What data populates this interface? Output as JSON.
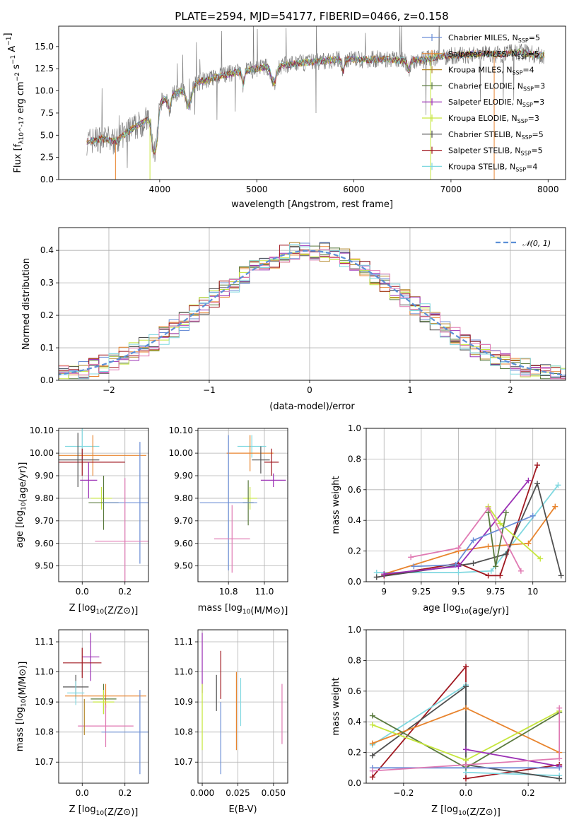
{
  "figure": {
    "title": "PLATE=2594, MJD=54177, FIBERID=0466, z=0.158"
  },
  "colors": {
    "data_gray": "#808080",
    "gauss": "#5b8fd6",
    "Chabrier MILES": "#6b8ed6",
    "Salpeter MILES": "#e8842e",
    "Kroupa MILES": "#b3872a",
    "Chabrier ELODIE": "#5a7a3e",
    "Salpeter ELODIE": "#9b30b5",
    "Kroupa ELODIE": "#c6e63d",
    "Chabrier STELIB": "#505050",
    "Salpeter STELIB": "#a01820",
    "Kroupa STELIB": "#80d8e0",
    "pink": "#e07ab3"
  },
  "chart_data": [
    {
      "id": "spectrum",
      "type": "line",
      "title": "PLATE=2594, MJD=54177, FIBERID=0466, z=0.158",
      "xlabel": "wavelength [Angstrom, rest frame]",
      "ylabel": "Flux [f_λ10^-17 erg cm^-2 s^-1 A^-1]",
      "xlim": [
        2960,
        8180
      ],
      "ylim": [
        0,
        17.3
      ],
      "xticks": [
        4000,
        5000,
        6000,
        7000,
        8000
      ],
      "yticks": [
        0.0,
        2.5,
        5.0,
        7.5,
        10.0,
        12.5,
        15.0
      ],
      "legend_position": "right",
      "continuum": {
        "x": [
          3250,
          3400,
          3550,
          3700,
          3850,
          3950,
          4000,
          4100,
          4200,
          4300,
          4400,
          4500,
          4700,
          4900,
          5100,
          5300,
          5500,
          5700,
          5900,
          6100,
          6300,
          6500,
          6700,
          6900,
          7100,
          7300,
          7500,
          7700,
          7900
        ],
        "y": [
          4.3,
          4.6,
          4.3,
          5.6,
          6.6,
          7.2,
          8.7,
          9.4,
          9.9,
          10.3,
          11.0,
          11.3,
          11.9,
          12.3,
          12.7,
          12.9,
          13.2,
          13.4,
          13.6,
          13.5,
          13.6,
          13.4,
          13.5,
          13.9,
          14.0,
          14.2,
          14.1,
          14.4,
          14.0
        ]
      },
      "series": [
        {
          "name": "Chabrier MILES, N_SSP=5",
          "label": "Chabrier MILES, N",
          "n": "5"
        },
        {
          "name": "Salpeter MILES, N_SSP=5",
          "label": "Salpeter MILES, N",
          "n": "5"
        },
        {
          "name": "Kroupa MILES, N_SSP=4",
          "label": "Kroupa MILES, N",
          "n": "4"
        },
        {
          "name": "Chabrier ELODIE, N_SSP=3",
          "label": "Chabrier ELODIE, N",
          "n": "3"
        },
        {
          "name": "Salpeter ELODIE, N_SSP=3",
          "label": "Salpeter ELODIE, N",
          "n": "3"
        },
        {
          "name": "Kroupa ELODIE, N_SSP=3",
          "label": "Kroupa ELODIE, N",
          "n": "3"
        },
        {
          "name": "Chabrier STELIB, N_SSP=5",
          "label": "Chabrier STELIB, N",
          "n": "5"
        },
        {
          "name": "Salpeter STELIB, N_SSP=5",
          "label": "Salpeter STELIB, N",
          "n": "5"
        },
        {
          "name": "Kroupa STELIB, N_SSP=4",
          "label": "Kroupa STELIB, N",
          "n": "4"
        }
      ]
    },
    {
      "id": "residuals",
      "type": "histogram",
      "xlabel": "(data-model)/error",
      "ylabel": "Normed distribution",
      "xlim": [
        -2.5,
        2.55
      ],
      "ylim": [
        0,
        0.47
      ],
      "xticks": [
        -2,
        -1,
        0,
        1,
        2
      ],
      "yticks": [
        0.0,
        0.1,
        0.2,
        0.3,
        0.4
      ],
      "grid": true,
      "gauss_label": "𝒩(0, 1)",
      "bin_width": 0.1
    },
    {
      "id": "age-vs-Z",
      "type": "errorbar",
      "xlabel": "Z [log10(Z/Z⊙)]",
      "ylabel": "age [log10(age/yr)]",
      "xlim": [
        -0.11,
        0.31
      ],
      "ylim": [
        9.43,
        10.11
      ],
      "xticks": [
        0.0,
        0.2
      ],
      "xticklabels": [
        "0.0",
        "0.2"
      ],
      "yticks": [
        9.5,
        9.6,
        9.7,
        9.8,
        9.9,
        10.0,
        10.1
      ],
      "points": [
        {
          "series": "Kroupa STELIB",
          "x": 0.0,
          "xerr": 0.08,
          "y": 10.03,
          "yerr": 0.08
        },
        {
          "series": "Salpeter MILES",
          "x": 0.05,
          "xerr": 0.25,
          "y": 9.99,
          "yerr": 0.09
        },
        {
          "series": "Salpeter STELIB",
          "x": 0.0,
          "xerr": 0.2,
          "y": 9.96,
          "yerr": 0.06
        },
        {
          "series": "Chabrier STELIB",
          "x": -0.02,
          "xerr": 0.1,
          "y": 9.97,
          "yerr": 0.12
        },
        {
          "series": "Salpeter ELODIE",
          "x": 0.03,
          "xerr": 0.04,
          "y": 9.88,
          "yerr": 0.08
        },
        {
          "series": "Kroupa ELODIE",
          "x": 0.09,
          "xerr": 0.05,
          "y": 9.8,
          "yerr": 0.05
        },
        {
          "series": "Chabrier ELODIE",
          "x": 0.1,
          "xerr": 0.07,
          "y": 9.78,
          "yerr": 0.12
        },
        {
          "series": "Chabrier MILES",
          "x": 0.27,
          "xerr": 0.17,
          "y": 9.78,
          "yerr": 0.27
        },
        {
          "series": "pink",
          "x": 0.2,
          "xerr": 0.14,
          "y": 9.61,
          "yerr": 0.28
        }
      ]
    },
    {
      "id": "age-vs-mass",
      "type": "errorbar",
      "xlabel": "mass [log10(M/M⊙)]",
      "xlim": [
        10.63,
        11.13
      ],
      "ylim": [
        9.43,
        10.11
      ],
      "xticks": [
        10.8,
        11.0
      ],
      "xticklabels": [
        "10.8",
        "11.0"
      ],
      "yticks": [
        9.5,
        9.6,
        9.7,
        9.8,
        9.9,
        10.0,
        10.1
      ],
      "points": [
        {
          "series": "Kroupa STELIB",
          "x": 10.93,
          "xerr": 0.08,
          "y": 10.03,
          "yerr": 0.05
        },
        {
          "series": "Salpeter MILES",
          "x": 10.92,
          "xerr": 0.13,
          "y": 10.0,
          "yerr": 0.08
        },
        {
          "series": "Salpeter STELIB",
          "x": 11.04,
          "xerr": 0.04,
          "y": 9.96,
          "yerr": 0.06
        },
        {
          "series": "Chabrier STELIB",
          "x": 10.98,
          "xerr": 0.05,
          "y": 9.97,
          "yerr": 0.06
        },
        {
          "series": "Salpeter ELODIE",
          "x": 11.05,
          "xerr": 0.07,
          "y": 9.88,
          "yerr": 0.03
        },
        {
          "series": "Kroupa ELODIE",
          "x": 10.92,
          "xerr": 0.04,
          "y": 9.8,
          "yerr": 0.05
        },
        {
          "series": "Chabrier ELODIE",
          "x": 10.91,
          "xerr": 0.03,
          "y": 9.78,
          "yerr": 0.1
        },
        {
          "series": "Chabrier MILES",
          "x": 10.8,
          "xerr": 0.16,
          "y": 9.78,
          "yerr": 0.3
        },
        {
          "series": "pink",
          "x": 10.82,
          "xerr": 0.1,
          "y": 9.62,
          "yerr": 0.15
        }
      ]
    },
    {
      "id": "weight-vs-age",
      "type": "line",
      "xlabel": "age [log10(age/yr)]",
      "ylabel": "mass weight",
      "xlim": [
        8.88,
        10.22
      ],
      "ylim": [
        0,
        1
      ],
      "xticks": [
        9.0,
        9.25,
        9.5,
        9.75,
        10.0
      ],
      "yticks": [
        0.0,
        0.2,
        0.4,
        0.6,
        0.8,
        1.0
      ],
      "grid": true,
      "lines": [
        {
          "series": "Kroupa STELIB",
          "x": [
            8.95,
            9.5,
            9.72,
            10.17
          ],
          "y": [
            0.06,
            0.06,
            0.07,
            0.63
          ]
        },
        {
          "series": "Salpeter MILES",
          "x": [
            9.0,
            9.5,
            9.7,
            9.97,
            10.15
          ],
          "y": [
            0.05,
            0.2,
            0.23,
            0.25,
            0.49
          ]
        },
        {
          "series": "Salpeter STELIB",
          "x": [
            9.0,
            9.5,
            9.7,
            9.78,
            10.03
          ],
          "y": [
            0.04,
            0.12,
            0.04,
            0.04,
            0.76
          ]
        },
        {
          "series": "Chabrier STELIB",
          "x": [
            8.95,
            9.6,
            9.82,
            10.03,
            10.19
          ],
          "y": [
            0.03,
            0.12,
            0.18,
            0.64,
            0.04
          ]
        },
        {
          "series": "Salpeter ELODIE",
          "x": [
            9.0,
            9.5,
            9.97
          ],
          "y": [
            0.05,
            0.1,
            0.66
          ]
        },
        {
          "series": "Kroupa ELODIE",
          "x": [
            9.7,
            9.78,
            10.05
          ],
          "y": [
            0.49,
            0.38,
            0.15
          ]
        },
        {
          "series": "Chabrier ELODIE",
          "x": [
            9.7,
            9.75,
            9.82
          ],
          "y": [
            0.45,
            0.1,
            0.45
          ]
        },
        {
          "series": "Chabrier MILES",
          "x": [
            9.2,
            9.48,
            9.6,
            10.0
          ],
          "y": [
            0.1,
            0.11,
            0.27,
            0.43
          ]
        },
        {
          "series": "pink",
          "x": [
            9.18,
            9.5,
            9.7,
            9.92
          ],
          "y": [
            0.16,
            0.22,
            0.48,
            0.07
          ]
        }
      ]
    },
    {
      "id": "mass-vs-Z",
      "type": "errorbar",
      "xlabel": "Z [log10(Z/Z⊙)]",
      "ylabel": "mass [log10(M/M⊙)]",
      "xlim": [
        -0.11,
        0.31
      ],
      "ylim": [
        10.63,
        11.14
      ],
      "xticks": [
        0.0,
        0.2
      ],
      "xticklabels": [
        "0.0",
        "0.2"
      ],
      "yticks": [
        10.7,
        10.8,
        10.9,
        11.0,
        11.1
      ],
      "points": [
        {
          "series": "Salpeter ELODIE",
          "x": 0.04,
          "xerr": 0.04,
          "y": 11.05,
          "yerr": 0.08
        },
        {
          "series": "Salpeter STELIB",
          "x": 0.0,
          "xerr": 0.09,
          "y": 11.03,
          "yerr": 0.05
        },
        {
          "series": "Chabrier STELIB",
          "x": -0.03,
          "xerr": 0.06,
          "y": 10.95,
          "yerr": 0.04
        },
        {
          "series": "Kroupa STELIB",
          "x": -0.03,
          "xerr": 0.04,
          "y": 10.93,
          "yerr": 0.04
        },
        {
          "series": "Salpeter MILES",
          "x": 0.11,
          "xerr": 0.19,
          "y": 10.92,
          "yerr": 0.04
        },
        {
          "series": "Chabrier ELODIE",
          "x": 0.1,
          "xerr": 0.06,
          "y": 10.91,
          "yerr": 0.05
        },
        {
          "series": "Kroupa ELODIE",
          "x": 0.1,
          "xerr": 0.05,
          "y": 10.9,
          "yerr": 0.04
        },
        {
          "series": "pink",
          "x": 0.11,
          "xerr": 0.13,
          "y": 10.82,
          "yerr": 0.07
        },
        {
          "series": "Chabrier MILES",
          "x": 0.27,
          "xerr": 0.18,
          "y": 10.8,
          "yerr": 0.14
        },
        {
          "series": "Kroupa MILES",
          "x": 0.01,
          "xerr": 0.0,
          "y": 10.85,
          "yerr": 0.06
        }
      ]
    },
    {
      "id": "mass-vs-EBV",
      "type": "errorbar",
      "xlabel": "E(B-V)",
      "xlim": [
        -0.003,
        0.06
      ],
      "ylim": [
        10.63,
        11.14
      ],
      "xticks": [
        0.0,
        0.025,
        0.05
      ],
      "xticklabels": [
        "0.000",
        "0.025",
        "0.050"
      ],
      "yticks": [
        10.7,
        10.8,
        10.9,
        11.0,
        11.1
      ],
      "points": [
        {
          "series": "Salpeter ELODIE",
          "x": 0.0,
          "y": 11.03,
          "yerr": 0.1
        },
        {
          "series": "Kroupa ELODIE",
          "x": 0.0,
          "y": 10.85,
          "yerr": 0.11
        },
        {
          "series": "Chabrier STELIB",
          "x": 0.01,
          "y": 10.93,
          "yerr": 0.06
        },
        {
          "series": "Chabrier MILES",
          "x": 0.013,
          "y": 10.78,
          "yerr": 0.12
        },
        {
          "series": "Salpeter STELIB",
          "x": 0.013,
          "y": 10.99,
          "yerr": 0.08
        },
        {
          "series": "Salpeter MILES",
          "x": 0.024,
          "y": 10.87,
          "yerr": 0.13
        },
        {
          "series": "Kroupa STELIB",
          "x": 0.027,
          "y": 10.9,
          "yerr": 0.08
        },
        {
          "series": "pink",
          "x": 0.056,
          "y": 10.86,
          "yerr": 0.1
        }
      ]
    },
    {
      "id": "weight-vs-Z",
      "type": "line",
      "xlabel": "Z [log10(Z/Z⊙)]",
      "ylabel": "mass weight",
      "xlim": [
        -0.32,
        0.32
      ],
      "ylim": [
        0,
        1
      ],
      "xticks": [
        -0.2,
        0.0,
        0.2
      ],
      "xticklabels": [
        "−0.2",
        "0.0",
        "0.2"
      ],
      "yticks": [
        0.0,
        0.2,
        0.4,
        0.6,
        0.8,
        1.0
      ],
      "grid": true,
      "lines": [
        {
          "series": "Salpeter STELIB",
          "x": [
            -0.3,
            0.0,
            0.0,
            0.3
          ],
          "y": [
            0.04,
            0.76,
            0.03,
            0.12
          ]
        },
        {
          "series": "Kroupa STELIB",
          "x": [
            -0.3,
            0.0,
            0.0,
            0.3
          ],
          "y": [
            0.25,
            0.64,
            0.07,
            0.05
          ]
        },
        {
          "series": "Chabrier STELIB",
          "x": [
            -0.3,
            0.0,
            0.0,
            0.3
          ],
          "y": [
            0.18,
            0.63,
            0.12,
            0.03
          ]
        },
        {
          "series": "Salpeter MILES",
          "x": [
            -0.3,
            0.0,
            0.3
          ],
          "y": [
            0.26,
            0.49,
            0.2
          ]
        },
        {
          "series": "Chabrier ELODIE",
          "x": [
            -0.3,
            0.0,
            0.3
          ],
          "y": [
            0.44,
            0.1,
            0.46
          ]
        },
        {
          "series": "Kroupa ELODIE",
          "x": [
            -0.3,
            0.0,
            0.3
          ],
          "y": [
            0.38,
            0.15,
            0.47
          ]
        },
        {
          "series": "Salpeter ELODIE",
          "x": [
            0.0,
            0.3
          ],
          "y": [
            0.22,
            0.11
          ]
        },
        {
          "series": "Chabrier MILES",
          "x": [
            -0.3,
            0.3
          ],
          "y": [
            0.1,
            0.1
          ]
        },
        {
          "series": "pink",
          "x": [
            -0.3,
            0.0,
            0.3,
            0.3
          ],
          "y": [
            0.08,
            0.12,
            0.16,
            0.49
          ]
        }
      ]
    }
  ]
}
